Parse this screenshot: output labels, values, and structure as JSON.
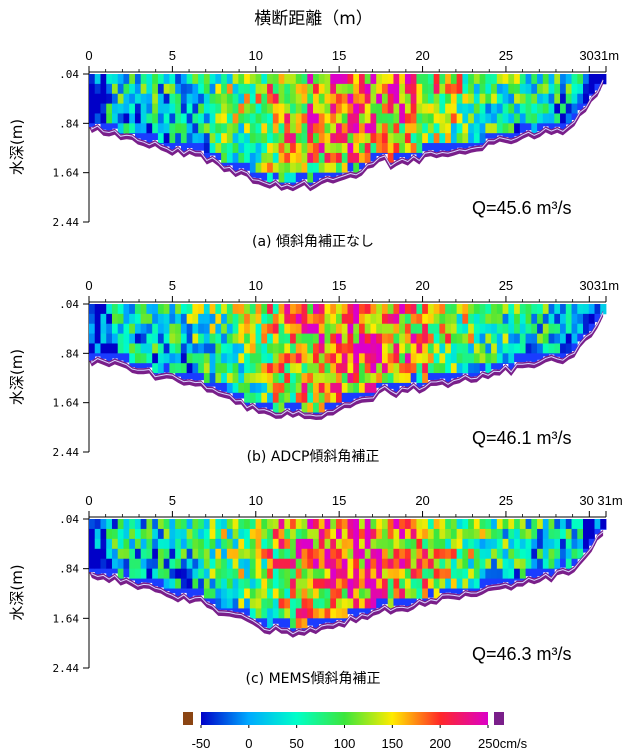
{
  "title": "横断距離（m）",
  "colorbar": {
    "ticks": [
      "-50",
      "0",
      "50",
      "100",
      "150",
      "200",
      "250cm/s"
    ],
    "range": [
      -50,
      250
    ],
    "low_color": "#8b4513",
    "high_color": "#7a1f8a"
  },
  "chart_data": [
    {
      "type": "heatmap",
      "caption": "(a) 傾斜角補正なし",
      "annotation": "Q=45.6 m³/s",
      "ylabel": "水深(m)",
      "xticks": [
        "0",
        "5",
        "10",
        "15",
        "20",
        "25",
        "3031m"
      ],
      "yticks": [
        ".04",
        ".84",
        "1.64",
        "2.44"
      ],
      "xlim": [
        0,
        31
      ],
      "ylim": [
        0.04,
        2.44
      ],
      "discharge_m3s": 45.6,
      "seed": 7
    },
    {
      "type": "heatmap",
      "caption": "(b) ADCP傾斜角補正",
      "annotation": "Q=46.1 m³/s",
      "ylabel": "水深(m)",
      "xticks": [
        "0",
        "5",
        "10",
        "15",
        "20",
        "25",
        "3031m"
      ],
      "yticks": [
        ".04",
        ".84",
        "1.64",
        "2.44"
      ],
      "xlim": [
        0,
        31
      ],
      "ylim": [
        0.04,
        2.44
      ],
      "discharge_m3s": 46.1,
      "seed": 19
    },
    {
      "type": "heatmap",
      "caption": "(c) MEMS傾斜角補正",
      "annotation": "Q=46.3 m³/s",
      "ylabel": "水深(m)",
      "xticks": [
        "0",
        "5",
        "10",
        "15",
        "20",
        "25",
        "30 31m"
      ],
      "yticks": [
        ".04",
        ".84",
        "1.64",
        "2.44"
      ],
      "xlim": [
        0,
        31
      ],
      "ylim": [
        0.04,
        2.44
      ],
      "discharge_m3s": 46.3,
      "seed": 31
    }
  ]
}
